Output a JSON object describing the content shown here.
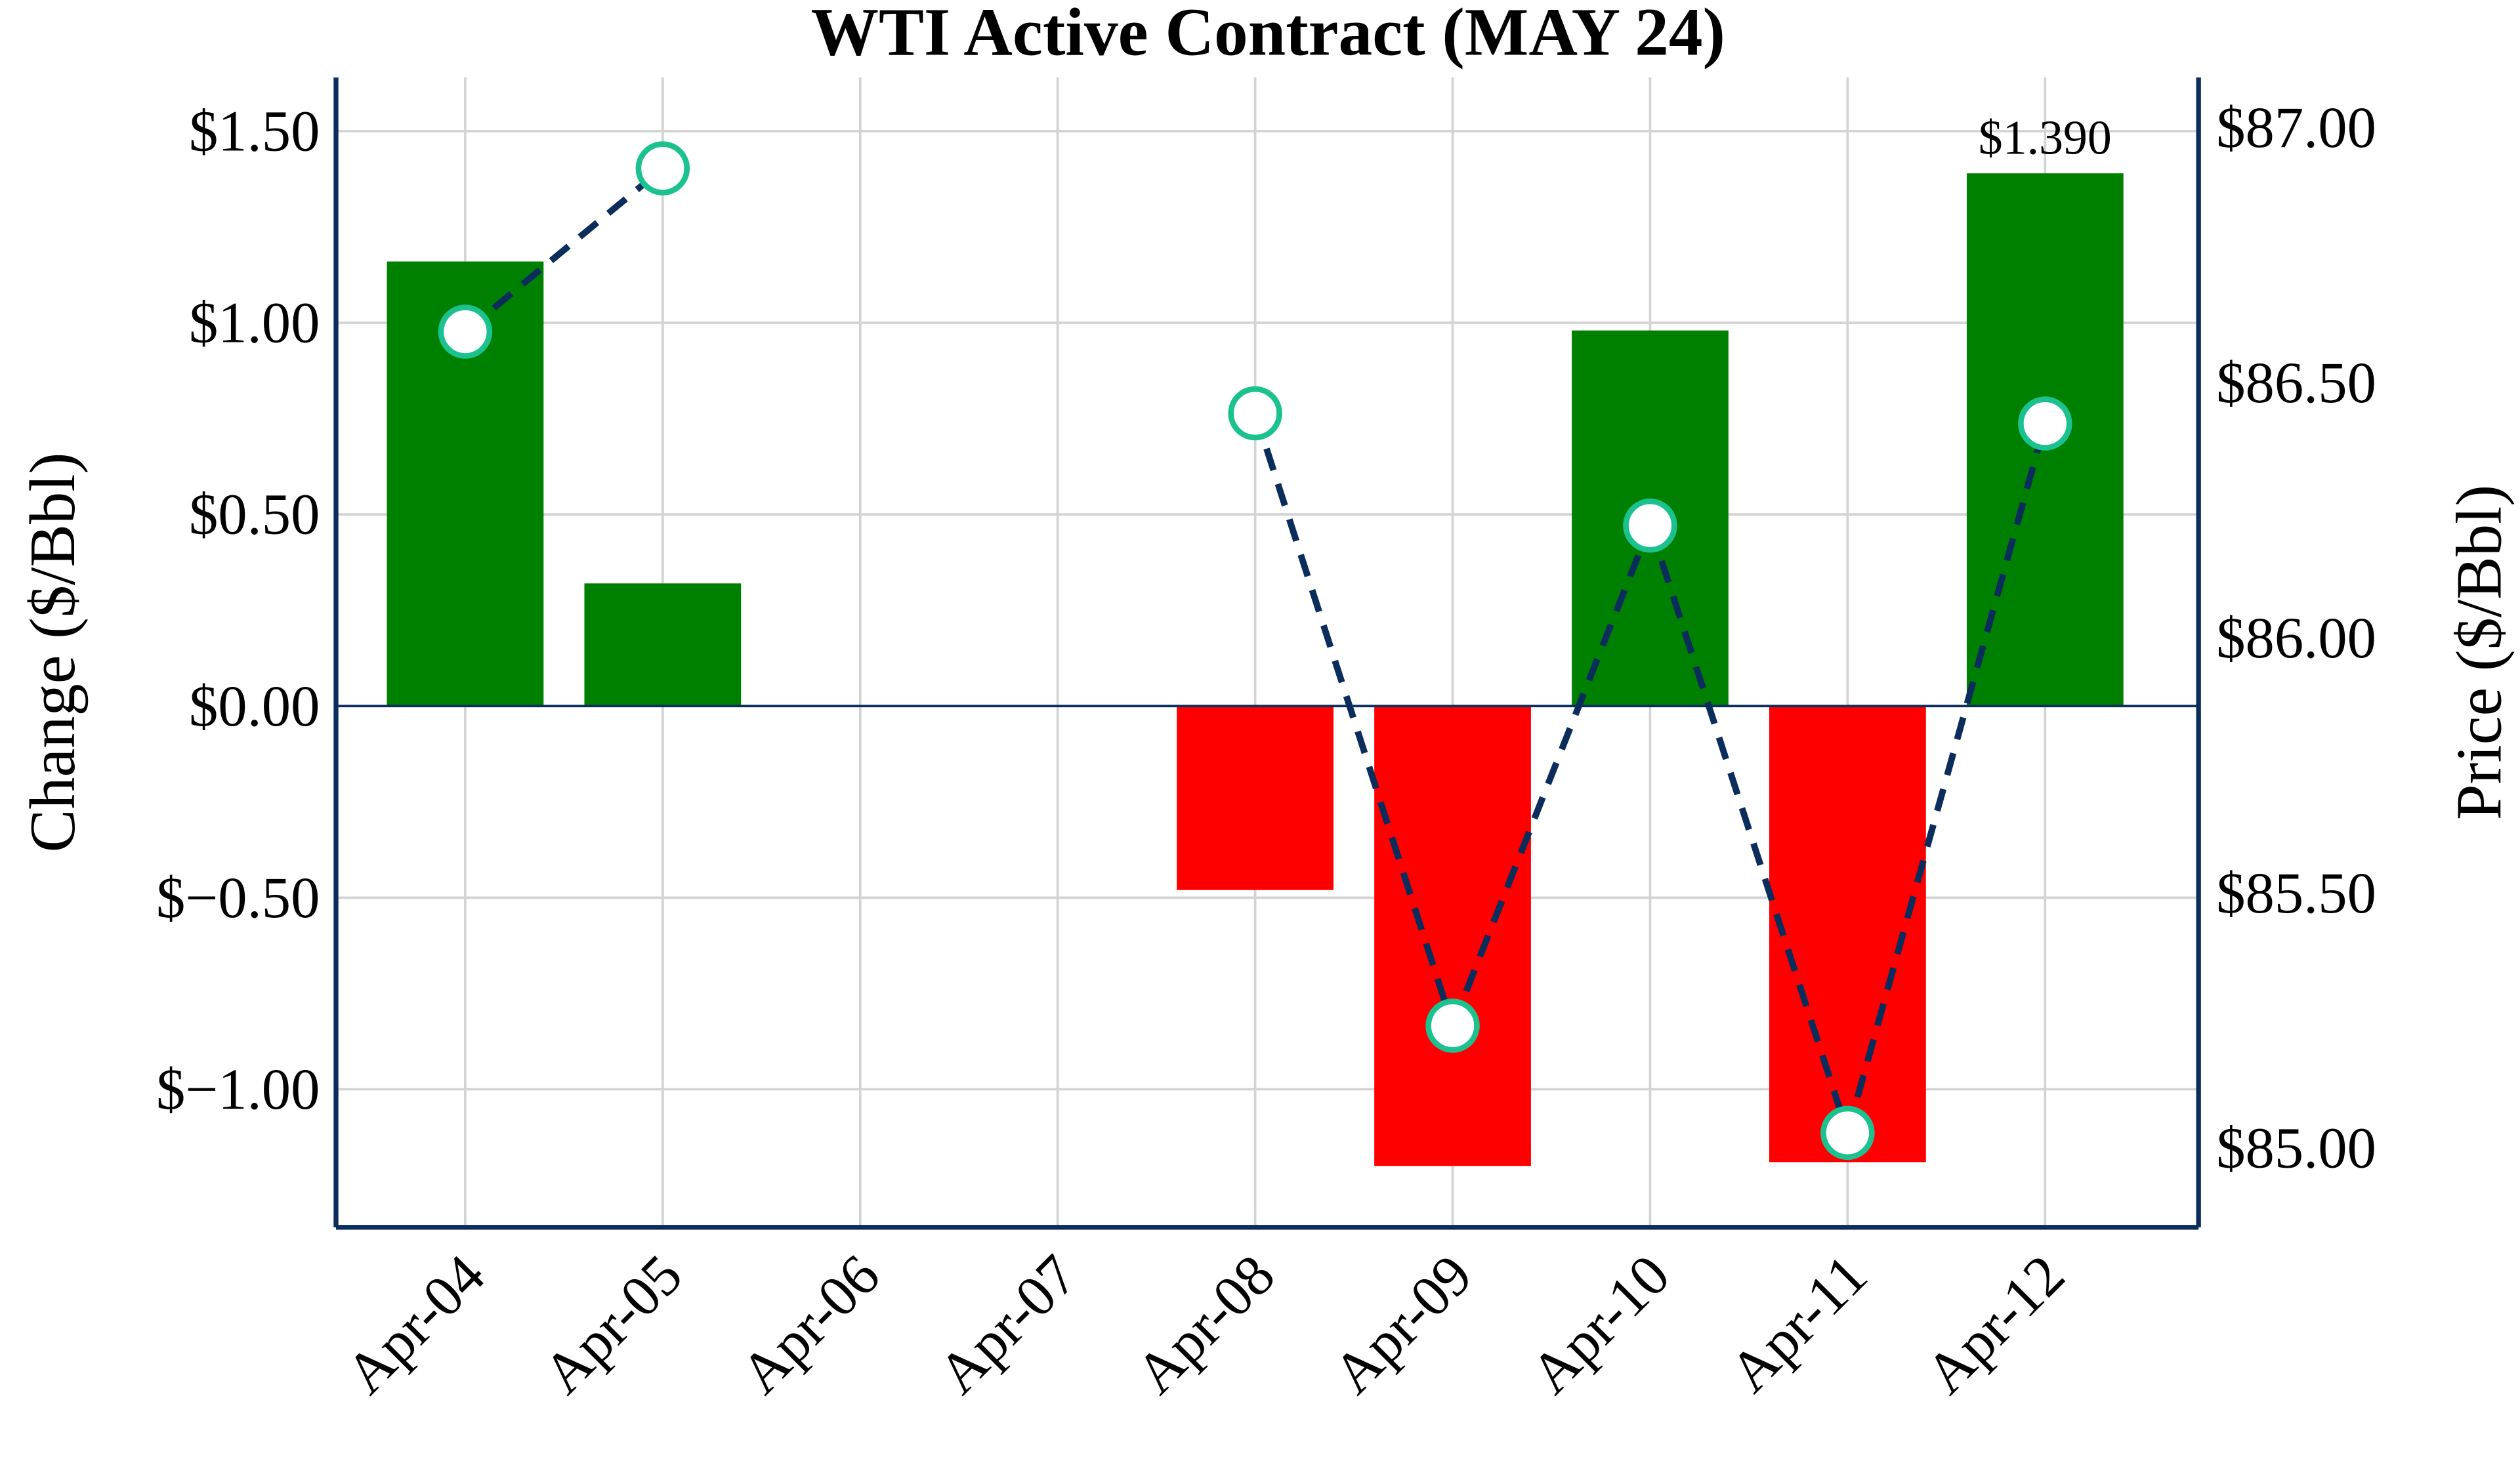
{
  "chart_data": {
    "type": "bar",
    "title": "WTI Active Contract (MAY 24)",
    "categories": [
      "Apr-04",
      "Apr-05",
      "Apr-06",
      "Apr-07",
      "Apr-08",
      "Apr-09",
      "Apr-10",
      "Apr-11",
      "Apr-12"
    ],
    "series": [
      {
        "name": "Change",
        "axis": "left",
        "type": "bar",
        "values": [
          1.16,
          0.32,
          null,
          null,
          -0.48,
          -1.2,
          0.98,
          -1.19,
          1.39
        ]
      },
      {
        "name": "Price",
        "axis": "right",
        "type": "line",
        "values": [
          86.6,
          86.92,
          null,
          null,
          86.44,
          85.24,
          86.22,
          85.03,
          86.42
        ]
      }
    ],
    "ylabel": "Change ($/Bbl)",
    "y2label": "Price ($/Bbl)",
    "ylim": [
      -1.36,
      1.64
    ],
    "y2lim": [
      84.845,
      87.098
    ],
    "yticks": [
      -1.0,
      -0.5,
      0.0,
      0.5,
      1.0,
      1.5
    ],
    "ytick_labels": [
      "$−1.00",
      "$−0.50",
      "$0.00",
      "$0.50",
      "$1.00",
      "$1.50"
    ],
    "y2ticks": [
      85.0,
      85.5,
      86.0,
      86.5,
      87.0
    ],
    "y2tick_labels": [
      "$85.00",
      "$85.50",
      "$86.00",
      "$86.50",
      "$87.00"
    ],
    "annotation": {
      "category": "Apr-12",
      "text": "$1.390"
    },
    "grid": true,
    "colors": {
      "up": "#008000",
      "down": "#ff0000",
      "line": "#0b2d5b",
      "marker_edge": "#1bc28f",
      "axis": "#0b2d5b",
      "grid": "#d3d3d3"
    }
  }
}
